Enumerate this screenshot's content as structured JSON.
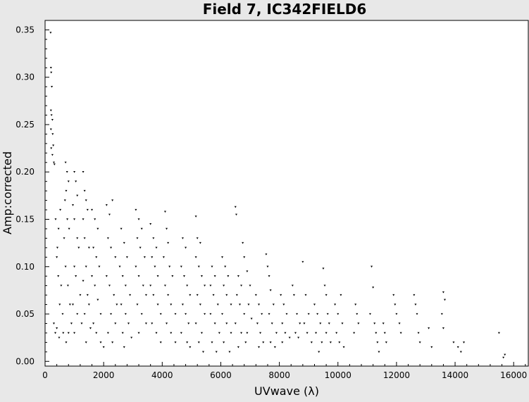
{
  "chart_data": {
    "type": "scatter",
    "title": "Field 7, IC342FIELD6",
    "xlabel": "UVwave (λ)",
    "ylabel": "Amp:corrected",
    "xlim": [
      0,
      16500
    ],
    "ylim": [
      -0.005,
      0.36
    ],
    "x_ticks": [
      0,
      2000,
      4000,
      6000,
      8000,
      10000,
      12000,
      14000,
      16000
    ],
    "x_tick_labels": [
      "0",
      "2000",
      "4000",
      "6000",
      "8000",
      "10000",
      "12000",
      "14000",
      "16000"
    ],
    "y_ticks": [
      0.0,
      0.05,
      0.1,
      0.15,
      0.2,
      0.25,
      0.3,
      0.35
    ],
    "y_tick_labels": [
      "0.00",
      "0.05",
      "0.10",
      "0.15",
      "0.20",
      "0.25",
      "0.30",
      "0.35"
    ],
    "grid": false,
    "legend": "none",
    "marker_color": "#000000",
    "plot_background": "#ffffff",
    "page_background": "#e8e8e8",
    "series": [
      {
        "points": [
          [
            190,
            0.347
          ],
          [
            200,
            0.31
          ],
          [
            210,
            0.305
          ],
          [
            230,
            0.29
          ],
          [
            200,
            0.265
          ],
          [
            220,
            0.26
          ],
          [
            250,
            0.255
          ],
          [
            200,
            0.245
          ],
          [
            260,
            0.24
          ],
          [
            280,
            0.228
          ],
          [
            210,
            0.225
          ],
          [
            300,
            0.21
          ],
          [
            320,
            0.208
          ],
          [
            250,
            0.218
          ],
          [
            300,
            0.04
          ],
          [
            350,
            0.03
          ],
          [
            400,
            0.035
          ],
          [
            360,
            0.15
          ],
          [
            420,
            0.12
          ],
          [
            450,
            0.09
          ],
          [
            500,
            0.06
          ],
          [
            400,
            0.11
          ],
          [
            460,
            0.14
          ],
          [
            520,
            0.16
          ],
          [
            550,
            0.08
          ],
          [
            600,
            0.05
          ],
          [
            480,
            0.025
          ],
          [
            620,
            0.03
          ],
          [
            700,
            0.21
          ],
          [
            750,
            0.2
          ],
          [
            800,
            0.19
          ],
          [
            720,
            0.18
          ],
          [
            680,
            0.17
          ],
          [
            760,
            0.15
          ],
          [
            820,
            0.14
          ],
          [
            650,
            0.13
          ],
          [
            700,
            0.1
          ],
          [
            780,
            0.08
          ],
          [
            850,
            0.06
          ],
          [
            900,
            0.04
          ],
          [
            720,
            0.02
          ],
          [
            800,
            0.03
          ],
          [
            1000,
            0.2
          ],
          [
            1050,
            0.19
          ],
          [
            1100,
            0.175
          ],
          [
            950,
            0.165
          ],
          [
            1000,
            0.15
          ],
          [
            1100,
            0.13
          ],
          [
            1150,
            0.12
          ],
          [
            1000,
            0.1
          ],
          [
            1050,
            0.09
          ],
          [
            1200,
            0.07
          ],
          [
            950,
            0.06
          ],
          [
            1100,
            0.05
          ],
          [
            1250,
            0.04
          ],
          [
            1000,
            0.03
          ],
          [
            1300,
            0.2
          ],
          [
            1350,
            0.18
          ],
          [
            1400,
            0.17
          ],
          [
            1450,
            0.16
          ],
          [
            1300,
            0.15
          ],
          [
            1350,
            0.13
          ],
          [
            1500,
            0.12
          ],
          [
            1400,
            0.1
          ],
          [
            1300,
            0.085
          ],
          [
            1450,
            0.07
          ],
          [
            1500,
            0.06
          ],
          [
            1350,
            0.05
          ],
          [
            1550,
            0.035
          ],
          [
            1400,
            0.02
          ],
          [
            1600,
            0.16
          ],
          [
            1700,
            0.15
          ],
          [
            1800,
            0.14
          ],
          [
            1650,
            0.12
          ],
          [
            1750,
            0.11
          ],
          [
            1850,
            0.1
          ],
          [
            1600,
            0.09
          ],
          [
            1700,
            0.08
          ],
          [
            1800,
            0.065
          ],
          [
            1900,
            0.05
          ],
          [
            1650,
            0.04
          ],
          [
            1750,
            0.03
          ],
          [
            1900,
            0.02
          ],
          [
            2000,
            0.015
          ],
          [
            2100,
            0.165
          ],
          [
            2200,
            0.155
          ],
          [
            2300,
            0.17
          ],
          [
            2150,
            0.13
          ],
          [
            2250,
            0.12
          ],
          [
            2400,
            0.11
          ],
          [
            2100,
            0.09
          ],
          [
            2200,
            0.08
          ],
          [
            2350,
            0.07
          ],
          [
            2450,
            0.06
          ],
          [
            2250,
            0.05
          ],
          [
            2400,
            0.04
          ],
          [
            2150,
            0.03
          ],
          [
            2300,
            0.02
          ],
          [
            2600,
            0.14
          ],
          [
            2700,
            0.125
          ],
          [
            2800,
            0.11
          ],
          [
            2550,
            0.1
          ],
          [
            2650,
            0.09
          ],
          [
            2750,
            0.08
          ],
          [
            2900,
            0.07
          ],
          [
            2600,
            0.06
          ],
          [
            2750,
            0.05
          ],
          [
            2850,
            0.04
          ],
          [
            2650,
            0.03
          ],
          [
            2950,
            0.025
          ],
          [
            2700,
            0.015
          ],
          [
            3100,
            0.16
          ],
          [
            3200,
            0.15
          ],
          [
            3300,
            0.14
          ],
          [
            3150,
            0.13
          ],
          [
            3250,
            0.12
          ],
          [
            3400,
            0.11
          ],
          [
            3100,
            0.1
          ],
          [
            3200,
            0.09
          ],
          [
            3350,
            0.08
          ],
          [
            3450,
            0.07
          ],
          [
            3150,
            0.06
          ],
          [
            3300,
            0.05
          ],
          [
            3450,
            0.04
          ],
          [
            3200,
            0.03
          ],
          [
            3600,
            0.145
          ],
          [
            3700,
            0.13
          ],
          [
            3800,
            0.12
          ],
          [
            3650,
            0.11
          ],
          [
            3750,
            0.1
          ],
          [
            3850,
            0.09
          ],
          [
            3600,
            0.08
          ],
          [
            3700,
            0.07
          ],
          [
            3850,
            0.06
          ],
          [
            3950,
            0.05
          ],
          [
            3650,
            0.04
          ],
          [
            3800,
            0.03
          ],
          [
            3950,
            0.02
          ],
          [
            4100,
            0.158
          ],
          [
            4150,
            0.14
          ],
          [
            4200,
            0.125
          ],
          [
            4050,
            0.11
          ],
          [
            4250,
            0.1
          ],
          [
            4350,
            0.09
          ],
          [
            4100,
            0.08
          ],
          [
            4200,
            0.07
          ],
          [
            4300,
            0.06
          ],
          [
            4450,
            0.05
          ],
          [
            4150,
            0.04
          ],
          [
            4300,
            0.03
          ],
          [
            4450,
            0.02
          ],
          [
            4700,
            0.13
          ],
          [
            4800,
            0.12
          ],
          [
            4650,
            0.1
          ],
          [
            4750,
            0.09
          ],
          [
            4850,
            0.08
          ],
          [
            4950,
            0.07
          ],
          [
            4700,
            0.06
          ],
          [
            4800,
            0.05
          ],
          [
            4900,
            0.04
          ],
          [
            4650,
            0.03
          ],
          [
            4850,
            0.02
          ],
          [
            4950,
            0.015
          ],
          [
            5150,
            0.153
          ],
          [
            5200,
            0.13
          ],
          [
            5300,
            0.125
          ],
          [
            5150,
            0.11
          ],
          [
            5250,
            0.1
          ],
          [
            5350,
            0.09
          ],
          [
            5450,
            0.08
          ],
          [
            5200,
            0.07
          ],
          [
            5300,
            0.06
          ],
          [
            5450,
            0.05
          ],
          [
            5150,
            0.04
          ],
          [
            5350,
            0.03
          ],
          [
            5250,
            0.02
          ],
          [
            5400,
            0.01
          ],
          [
            5700,
            0.1
          ],
          [
            5800,
            0.09
          ],
          [
            5650,
            0.08
          ],
          [
            5750,
            0.07
          ],
          [
            5900,
            0.06
          ],
          [
            5650,
            0.05
          ],
          [
            5800,
            0.04
          ],
          [
            5950,
            0.03
          ],
          [
            5700,
            0.02
          ],
          [
            5850,
            0.01
          ],
          [
            6050,
            0.11
          ],
          [
            6150,
            0.1
          ],
          [
            6250,
            0.09
          ],
          [
            6100,
            0.08
          ],
          [
            6200,
            0.07
          ],
          [
            6350,
            0.06
          ],
          [
            6050,
            0.05
          ],
          [
            6200,
            0.04
          ],
          [
            6350,
            0.03
          ],
          [
            6100,
            0.02
          ],
          [
            6300,
            0.01
          ],
          [
            6500,
            0.163
          ],
          [
            6530,
            0.155
          ],
          [
            6600,
            0.09
          ],
          [
            6700,
            0.08
          ],
          [
            6550,
            0.07
          ],
          [
            6650,
            0.06
          ],
          [
            6800,
            0.05
          ],
          [
            6500,
            0.04
          ],
          [
            6700,
            0.03
          ],
          [
            6850,
            0.02
          ],
          [
            6600,
            0.015
          ],
          [
            6750,
            0.125
          ],
          [
            6800,
            0.11
          ],
          [
            6900,
            0.095
          ],
          [
            7000,
            0.08
          ],
          [
            6950,
            0.06
          ],
          [
            7050,
            0.045
          ],
          [
            6900,
            0.03
          ],
          [
            7200,
            0.07
          ],
          [
            7300,
            0.06
          ],
          [
            7400,
            0.05
          ],
          [
            7250,
            0.04
          ],
          [
            7350,
            0.03
          ],
          [
            7450,
            0.02
          ],
          [
            7300,
            0.015
          ],
          [
            7550,
            0.113
          ],
          [
            7600,
            0.1
          ],
          [
            7650,
            0.09
          ],
          [
            7700,
            0.075
          ],
          [
            7800,
            0.06
          ],
          [
            7650,
            0.05
          ],
          [
            7750,
            0.04
          ],
          [
            7900,
            0.03
          ],
          [
            7700,
            0.02
          ],
          [
            7850,
            0.015
          ],
          [
            8050,
            0.07
          ],
          [
            8150,
            0.06
          ],
          [
            8250,
            0.05
          ],
          [
            8100,
            0.04
          ],
          [
            8200,
            0.03
          ],
          [
            8350,
            0.025
          ],
          [
            8100,
            0.02
          ],
          [
            8450,
            0.08
          ],
          [
            8500,
            0.07
          ],
          [
            8600,
            0.05
          ],
          [
            8700,
            0.04
          ],
          [
            8550,
            0.03
          ],
          [
            8650,
            0.025
          ],
          [
            8800,
            0.105
          ],
          [
            8900,
            0.07
          ],
          [
            9000,
            0.05
          ],
          [
            8850,
            0.04
          ],
          [
            8950,
            0.03
          ],
          [
            9100,
            0.02
          ],
          [
            9200,
            0.06
          ],
          [
            9300,
            0.05
          ],
          [
            9400,
            0.04
          ],
          [
            9250,
            0.03
          ],
          [
            9450,
            0.02
          ],
          [
            9350,
            0.01
          ],
          [
            9500,
            0.098
          ],
          [
            9550,
            0.08
          ],
          [
            9600,
            0.07
          ],
          [
            9650,
            0.05
          ],
          [
            9700,
            0.04
          ],
          [
            9600,
            0.03
          ],
          [
            9750,
            0.02
          ],
          [
            9900,
            0.06
          ],
          [
            10000,
            0.05
          ],
          [
            10100,
            0.07
          ],
          [
            10150,
            0.04
          ],
          [
            9950,
            0.03
          ],
          [
            10050,
            0.02
          ],
          [
            10200,
            0.015
          ],
          [
            10600,
            0.06
          ],
          [
            10650,
            0.05
          ],
          [
            10700,
            0.04
          ],
          [
            10550,
            0.03
          ],
          [
            11150,
            0.1
          ],
          [
            11200,
            0.078
          ],
          [
            11100,
            0.05
          ],
          [
            11250,
            0.04
          ],
          [
            11300,
            0.03
          ],
          [
            11350,
            0.02
          ],
          [
            11400,
            0.01
          ],
          [
            11550,
            0.04
          ],
          [
            11600,
            0.03
          ],
          [
            11650,
            0.02
          ],
          [
            11900,
            0.07
          ],
          [
            11950,
            0.06
          ],
          [
            12000,
            0.05
          ],
          [
            12100,
            0.04
          ],
          [
            12150,
            0.03
          ],
          [
            12600,
            0.07
          ],
          [
            12650,
            0.06
          ],
          [
            12700,
            0.05
          ],
          [
            12750,
            0.03
          ],
          [
            12800,
            0.02
          ],
          [
            13100,
            0.035
          ],
          [
            13200,
            0.015
          ],
          [
            13600,
            0.073
          ],
          [
            13650,
            0.065
          ],
          [
            13550,
            0.05
          ],
          [
            13600,
            0.035
          ],
          [
            13950,
            0.02
          ],
          [
            14100,
            0.015
          ],
          [
            14200,
            0.01
          ],
          [
            14300,
            0.02
          ],
          [
            15500,
            0.03
          ],
          [
            15700,
            0.007
          ],
          [
            15650,
            0.004
          ]
        ]
      }
    ]
  }
}
